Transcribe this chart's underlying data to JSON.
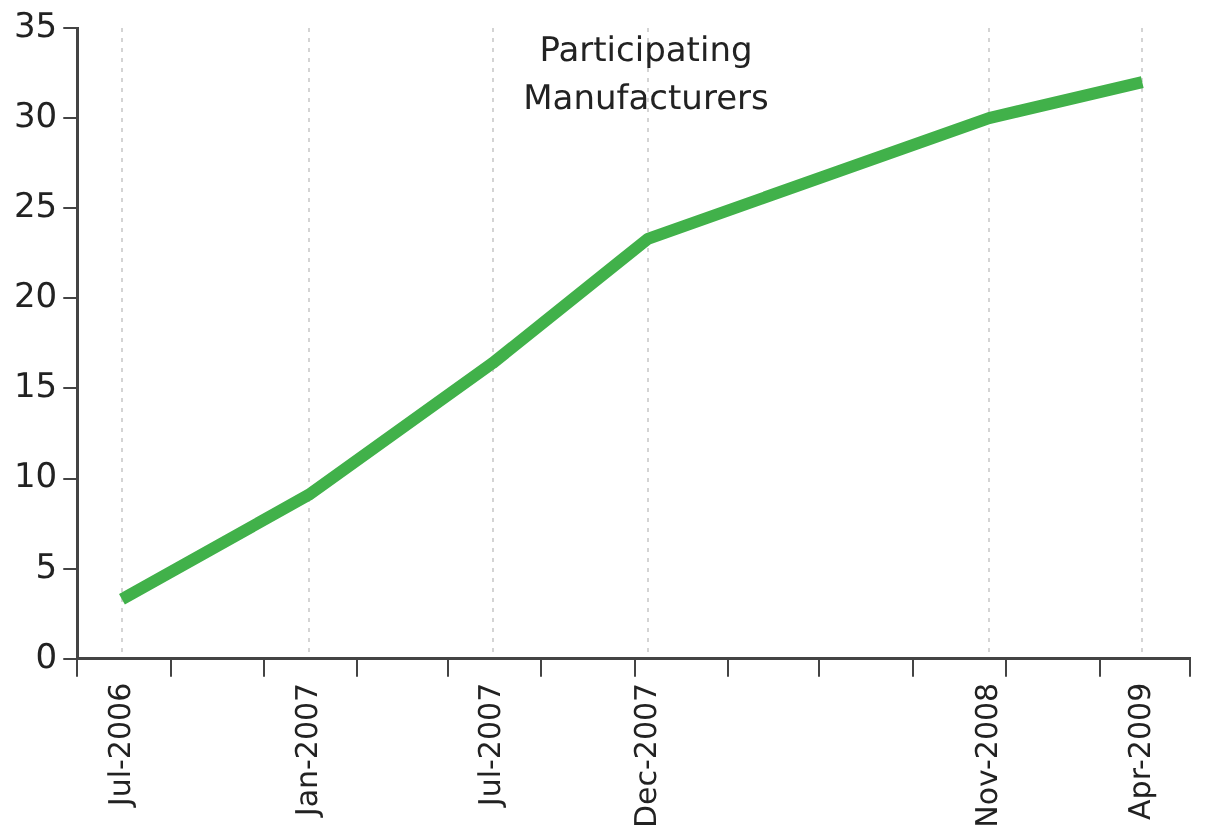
{
  "chart_data": {
    "type": "line",
    "title": "Participating Manufacturers",
    "x": [
      "2006-07-01",
      "2007-01-01",
      "2007-07-01",
      "2007-12-01",
      "2008-11-01",
      "2009-04-01"
    ],
    "series": [
      {
        "color": "#41b14a",
        "values": [
          3.3,
          9.1,
          16.4,
          23.3,
          30.0,
          32.0
        ]
      }
    ],
    "xlim": [
      "2006-05-18",
      "2009-05-18"
    ],
    "xticks": [
      {
        "value": "2006-05-18",
        "label": null
      },
      {
        "value": "2006-07-01",
        "label": "Jul-2006"
      },
      {
        "value": "2006-08-18",
        "label": null
      },
      {
        "value": "2006-11-18",
        "label": null
      },
      {
        "value": "2007-01-01",
        "label": "Jan-2007"
      },
      {
        "value": "2007-02-18",
        "label": null
      },
      {
        "value": "2007-05-18",
        "label": null
      },
      {
        "value": "2007-07-01",
        "label": "Jul-2007"
      },
      {
        "value": "2007-08-18",
        "label": null
      },
      {
        "value": "2007-11-18",
        "label": null
      },
      {
        "value": "2007-12-01",
        "label": "Dec-2007"
      },
      {
        "value": "2008-02-18",
        "label": null
      },
      {
        "value": "2008-05-18",
        "label": null
      },
      {
        "value": "2008-08-18",
        "label": null
      },
      {
        "value": "2008-11-01",
        "label": "Nov-2008"
      },
      {
        "value": "2008-11-18",
        "label": null
      },
      {
        "value": "2009-02-18",
        "label": null
      },
      {
        "value": "2009-04-01",
        "label": "Apr-2009"
      },
      {
        "value": "2009-05-18",
        "label": null
      }
    ],
    "ylim": [
      0,
      35
    ],
    "yticks": [
      0,
      5,
      10,
      15,
      20,
      25,
      30,
      35
    ],
    "grid": "x",
    "legend": false,
    "marker": "none",
    "line_style": "solid"
  }
}
